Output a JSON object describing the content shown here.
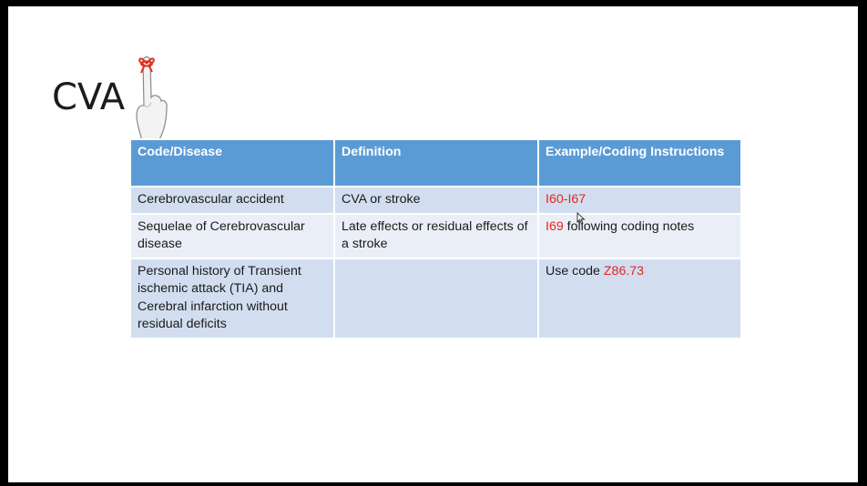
{
  "slide": {
    "title": "CVA",
    "table": {
      "headers": [
        "Code/Disease",
        "Definition",
        "Example/Coding Instructions"
      ],
      "rows": [
        {
          "disease": "Cerebrovascular accident",
          "definition": "CVA or stroke",
          "code": "I60-I67",
          "instruction": ""
        },
        {
          "disease": "Sequelae of Cerebrovascular disease",
          "definition": "Late effects or residual effects of a stroke",
          "code": "I69",
          "instruction": " following coding notes"
        },
        {
          "disease": "Personal history of Transient ischemic attack (TIA) and Cerebral infarction without residual deficits",
          "definition": "",
          "prefix": "Use code ",
          "code": "Z86.73"
        }
      ]
    }
  },
  "colors": {
    "header": "#5b9bd5",
    "row_dark": "#d2def0",
    "row_light": "#eaeff7",
    "code_red": "#e3261b"
  },
  "icons": {
    "reminder": "finger-with-red-string-icon",
    "cursor": "mouse-pointer-icon"
  }
}
